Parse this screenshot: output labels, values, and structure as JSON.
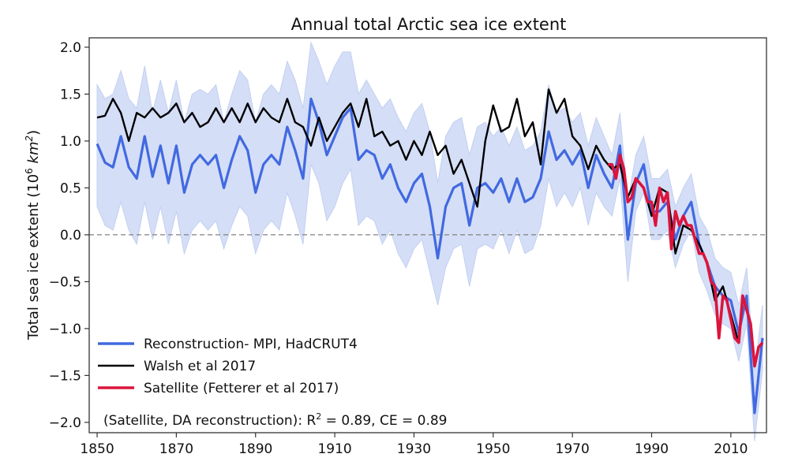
{
  "chart_data": {
    "type": "line",
    "title": "Annual total Arctic sea ice extent",
    "xlabel": "",
    "ylabel": "Total sea ice extent (10",
    "ylabel_sup": "6",
    "ylabel_unit": "km",
    "ylabel_unit_sup": "2",
    "ylabel_close": ")",
    "xlim": [
      1848,
      2019
    ],
    "ylim": [
      -2.11,
      2.1
    ],
    "grid": false,
    "legend_placement": "lower-left",
    "reference_line": {
      "y": 0,
      "style": "dashed",
      "color": "#808080"
    },
    "xticks": [
      1850,
      1870,
      1890,
      1910,
      1930,
      1950,
      1970,
      1990,
      2010
    ],
    "yticks": [
      2.0,
      1.5,
      1.0,
      0.5,
      0.0,
      -0.5,
      -1.0,
      -1.5,
      -2.0
    ],
    "ytick_labels": [
      "2.0",
      "1.5",
      "1.0",
      "0.5",
      "0.0",
      "−0.5",
      "−1.0",
      "−1.5",
      "−2.0"
    ],
    "annotation": {
      "prefix": "(Satellite, DA reconstruction): R",
      "sup": "2",
      "suffix": " = 0.89, CE = 0.89"
    },
    "series": [
      {
        "name": "Reconstruction- MPI, HadCRUT4",
        "color": "#4169e1",
        "band_color": "#d4def6",
        "x": [
          1850,
          1852,
          1854,
          1856,
          1858,
          1860,
          1862,
          1864,
          1866,
          1868,
          1870,
          1872,
          1874,
          1876,
          1878,
          1880,
          1882,
          1884,
          1886,
          1888,
          1890,
          1892,
          1894,
          1896,
          1898,
          1900,
          1902,
          1904,
          1906,
          1908,
          1910,
          1912,
          1914,
          1916,
          1918,
          1920,
          1922,
          1924,
          1926,
          1928,
          1930,
          1932,
          1934,
          1936,
          1938,
          1940,
          1942,
          1944,
          1946,
          1948,
          1950,
          1952,
          1954,
          1956,
          1958,
          1960,
          1962,
          1964,
          1966,
          1968,
          1970,
          1972,
          1974,
          1976,
          1978,
          1980,
          1982,
          1984,
          1986,
          1988,
          1990,
          1992,
          1994,
          1996,
          1998,
          2000,
          2002,
          2004,
          2006,
          2008,
          2010,
          2012,
          2014,
          2016,
          2018
        ],
        "values": [
          0.97,
          0.77,
          0.72,
          1.05,
          0.72,
          0.6,
          1.05,
          0.62,
          0.95,
          0.55,
          0.95,
          0.45,
          0.75,
          0.85,
          0.75,
          0.85,
          0.5,
          0.8,
          1.05,
          0.9,
          0.45,
          0.75,
          0.85,
          0.75,
          1.15,
          0.9,
          0.6,
          1.45,
          1.2,
          0.85,
          1.05,
          1.25,
          1.35,
          0.8,
          0.9,
          0.85,
          0.6,
          0.75,
          0.5,
          0.35,
          0.55,
          0.65,
          0.3,
          -0.25,
          0.3,
          0.5,
          0.55,
          0.1,
          0.5,
          0.55,
          0.45,
          0.6,
          0.35,
          0.6,
          0.35,
          0.4,
          0.6,
          1.1,
          0.8,
          0.9,
          0.75,
          0.9,
          0.5,
          0.85,
          0.65,
          0.5,
          0.95,
          -0.05,
          0.55,
          0.75,
          0.25,
          0.25,
          0.35,
          -0.05,
          0.2,
          0.35,
          -0.1,
          -0.3,
          -0.55,
          -0.65,
          -0.7,
          -1.05,
          -0.65,
          -1.9,
          -1.1
        ],
        "upper": [
          1.6,
          1.45,
          1.5,
          1.75,
          1.45,
          1.35,
          1.8,
          1.3,
          1.65,
          1.3,
          1.65,
          1.2,
          1.5,
          1.55,
          1.5,
          1.6,
          1.2,
          1.5,
          1.75,
          1.65,
          1.2,
          1.5,
          1.6,
          1.5,
          1.85,
          1.65,
          1.35,
          2.05,
          1.85,
          1.6,
          1.8,
          1.95,
          1.95,
          1.5,
          1.65,
          1.5,
          1.35,
          1.45,
          1.25,
          1.1,
          1.3,
          1.4,
          1.1,
          0.55,
          1.05,
          1.2,
          1.25,
          0.85,
          1.15,
          1.2,
          1.05,
          1.15,
          0.95,
          1.15,
          0.9,
          0.95,
          1.1,
          1.6,
          1.3,
          1.35,
          1.2,
          1.3,
          0.95,
          1.25,
          1.05,
          0.85,
          1.3,
          0.35,
          0.85,
          1.05,
          0.6,
          0.6,
          0.7,
          0.3,
          0.5,
          0.65,
          0.2,
          0.05,
          -0.25,
          -0.35,
          -0.4,
          -0.75,
          -0.35,
          -1.45,
          -0.75
        ],
        "lower": [
          0.3,
          0.1,
          0.05,
          0.35,
          0.05,
          -0.1,
          0.35,
          -0.05,
          0.3,
          -0.1,
          0.25,
          -0.2,
          0.05,
          0.15,
          0.05,
          0.15,
          -0.15,
          0.1,
          0.3,
          0.2,
          -0.2,
          0.05,
          0.15,
          0.05,
          0.45,
          0.2,
          -0.1,
          0.75,
          0.55,
          0.15,
          0.3,
          0.55,
          0.7,
          0.1,
          0.2,
          0.15,
          -0.1,
          0.05,
          -0.2,
          -0.35,
          -0.15,
          -0.05,
          -0.4,
          -0.75,
          -0.35,
          -0.15,
          -0.1,
          -0.55,
          -0.15,
          -0.1,
          -0.15,
          0.05,
          -0.2,
          0.05,
          -0.2,
          -0.15,
          0.1,
          0.6,
          0.3,
          0.45,
          0.3,
          0.5,
          0.1,
          0.45,
          0.3,
          0.2,
          0.6,
          -0.5,
          0.25,
          0.45,
          -0.05,
          -0.05,
          0.05,
          -0.35,
          -0.1,
          0.05,
          -0.4,
          -0.6,
          -0.85,
          -0.95,
          -1.0,
          -1.35,
          -0.95,
          -2.2,
          -1.45
        ]
      },
      {
        "name": "Walsh et al 2017",
        "color": "#000000",
        "x": [
          1850,
          1852,
          1854,
          1856,
          1858,
          1860,
          1862,
          1864,
          1866,
          1868,
          1870,
          1872,
          1874,
          1876,
          1878,
          1880,
          1882,
          1884,
          1886,
          1888,
          1890,
          1892,
          1894,
          1896,
          1898,
          1900,
          1902,
          1904,
          1906,
          1908,
          1910,
          1912,
          1914,
          1916,
          1918,
          1920,
          1922,
          1924,
          1926,
          1928,
          1930,
          1932,
          1934,
          1936,
          1938,
          1940,
          1942,
          1944,
          1946,
          1948,
          1950,
          1952,
          1954,
          1956,
          1958,
          1960,
          1962,
          1964,
          1966,
          1968,
          1970,
          1972,
          1974,
          1976,
          1978,
          1980,
          1982,
          1984,
          1986,
          1988,
          1990,
          1992,
          1994,
          1996,
          1998,
          2000,
          2002,
          2004,
          2006,
          2008,
          2010,
          2012
        ],
        "values": [
          1.25,
          1.27,
          1.45,
          1.3,
          1.0,
          1.3,
          1.25,
          1.35,
          1.25,
          1.3,
          1.4,
          1.2,
          1.3,
          1.15,
          1.2,
          1.35,
          1.2,
          1.35,
          1.2,
          1.4,
          1.2,
          1.35,
          1.25,
          1.2,
          1.45,
          1.2,
          1.15,
          0.95,
          1.25,
          1.0,
          1.15,
          1.3,
          1.4,
          1.15,
          1.45,
          1.05,
          1.1,
          0.95,
          1.0,
          0.8,
          1.0,
          0.85,
          1.1,
          0.85,
          0.95,
          0.65,
          0.8,
          0.55,
          0.3,
          1.0,
          1.38,
          1.1,
          1.15,
          1.45,
          1.05,
          1.2,
          0.75,
          1.55,
          1.3,
          1.45,
          1.05,
          0.95,
          0.7,
          0.95,
          0.8,
          0.7,
          0.75,
          0.4,
          0.6,
          0.5,
          0.2,
          0.5,
          0.45,
          -0.2,
          0.1,
          0.05,
          -0.1,
          -0.3,
          -0.7,
          -0.55,
          -0.85,
          -1.15
        ]
      },
      {
        "name": "Satellite (Fetterer et al 2017)",
        "color": "#dc143c",
        "x": [
          1979,
          1980,
          1981,
          1982,
          1983,
          1984,
          1985,
          1986,
          1987,
          1988,
          1989,
          1990,
          1991,
          1992,
          1993,
          1994,
          1995,
          1996,
          1997,
          1998,
          1999,
          2000,
          2001,
          2002,
          2003,
          2004,
          2005,
          2006,
          2007,
          2008,
          2009,
          2010,
          2011,
          2012,
          2013,
          2014,
          2015,
          2016,
          2017,
          2018
        ],
        "values": [
          0.75,
          0.75,
          0.6,
          0.85,
          0.7,
          0.35,
          0.4,
          0.6,
          0.55,
          0.5,
          0.35,
          0.35,
          0.1,
          0.5,
          0.35,
          0.45,
          -0.15,
          0.25,
          0.1,
          0.2,
          0.1,
          0.1,
          -0.05,
          -0.2,
          -0.2,
          -0.3,
          -0.5,
          -0.55,
          -1.1,
          -0.65,
          -0.7,
          -0.9,
          -1.1,
          -1.15,
          -0.65,
          -0.8,
          -0.95,
          -1.4,
          -1.2,
          -1.15
        ]
      }
    ]
  }
}
